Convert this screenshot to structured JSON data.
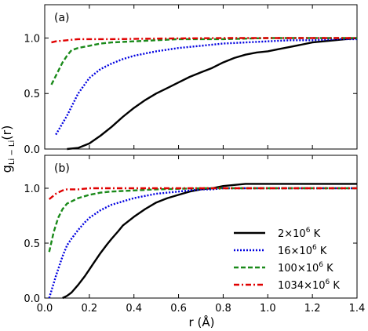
{
  "chart_data": [
    {
      "type": "line",
      "panel_label": "(a)",
      "xlabel": "",
      "ylabel": "",
      "xlim": [
        0.0,
        1.4
      ],
      "ylim": [
        0.0,
        1.3
      ],
      "y_ticks": [
        "0.0",
        "0.5",
        "1.0"
      ],
      "grid": false,
      "series": [
        {
          "name": "2×10⁶ K",
          "color": "#000000",
          "style": "solid",
          "x": [
            0.1,
            0.15,
            0.2,
            0.25,
            0.3,
            0.35,
            0.4,
            0.45,
            0.5,
            0.55,
            0.6,
            0.65,
            0.7,
            0.75,
            0.8,
            0.85,
            0.9,
            0.95,
            1.0,
            1.05,
            1.1,
            1.15,
            1.2,
            1.25,
            1.3,
            1.35,
            1.4
          ],
          "y": [
            0.0,
            0.01,
            0.05,
            0.12,
            0.2,
            0.29,
            0.37,
            0.44,
            0.5,
            0.55,
            0.6,
            0.65,
            0.69,
            0.73,
            0.78,
            0.82,
            0.85,
            0.87,
            0.88,
            0.9,
            0.92,
            0.94,
            0.96,
            0.97,
            0.98,
            0.99,
            1.0
          ]
        },
        {
          "name": "16×10⁶ K",
          "color": "#0000e0",
          "style": "dotted",
          "x": [
            0.05,
            0.1,
            0.15,
            0.2,
            0.25,
            0.3,
            0.35,
            0.4,
            0.5,
            0.6,
            0.7,
            0.8,
            0.9,
            1.0,
            1.1,
            1.2,
            1.3,
            1.4
          ],
          "y": [
            0.13,
            0.3,
            0.5,
            0.64,
            0.72,
            0.77,
            0.81,
            0.84,
            0.88,
            0.91,
            0.93,
            0.95,
            0.96,
            0.97,
            0.98,
            0.98,
            0.99,
            0.99
          ]
        },
        {
          "name": "100×10⁶ K",
          "color": "#1a8a1a",
          "style": "dashed",
          "x": [
            0.03,
            0.05,
            0.08,
            0.1,
            0.12,
            0.15,
            0.2,
            0.25,
            0.3,
            0.4,
            0.5,
            0.6,
            0.8,
            1.0,
            1.2,
            1.4
          ],
          "y": [
            0.58,
            0.66,
            0.78,
            0.84,
            0.89,
            0.91,
            0.93,
            0.95,
            0.96,
            0.97,
            0.98,
            0.99,
            0.99,
            1.0,
            1.0,
            1.0
          ]
        },
        {
          "name": "1034×10⁶ K",
          "color": "#e00000",
          "style": "dashdot",
          "x": [
            0.03,
            0.05,
            0.1,
            0.15,
            0.2,
            0.3,
            0.5,
            0.8,
            1.1,
            1.4
          ],
          "y": [
            0.96,
            0.97,
            0.98,
            0.99,
            0.99,
            0.99,
            0.995,
            1.0,
            1.0,
            1.0
          ]
        }
      ]
    },
    {
      "type": "line",
      "panel_label": "(b)",
      "xlabel": "r (Å)",
      "ylabel": "",
      "xlim": [
        0.0,
        1.4
      ],
      "ylim": [
        0.0,
        1.3
      ],
      "x_ticks": [
        "0.0",
        "0.2",
        "0.4",
        "0.6",
        "0.8",
        "1.0",
        "1.2",
        "1.4"
      ],
      "y_ticks": [
        "0.0",
        "0.5",
        "1.0"
      ],
      "grid": false,
      "legend_position": "lower-right",
      "series": [
        {
          "name": "2×10⁶ K",
          "color": "#000000",
          "style": "solid",
          "x": [
            0.08,
            0.1,
            0.12,
            0.15,
            0.18,
            0.2,
            0.22,
            0.25,
            0.28,
            0.3,
            0.33,
            0.35,
            0.4,
            0.45,
            0.5,
            0.55,
            0.6,
            0.65,
            0.7,
            0.75,
            0.8,
            0.85,
            0.9,
            0.95,
            1.0,
            1.1,
            1.2,
            1.3,
            1.4
          ],
          "y": [
            0.0,
            0.02,
            0.05,
            0.12,
            0.2,
            0.26,
            0.32,
            0.41,
            0.49,
            0.54,
            0.61,
            0.66,
            0.74,
            0.81,
            0.87,
            0.91,
            0.94,
            0.97,
            0.99,
            1.0,
            1.02,
            1.03,
            1.04,
            1.04,
            1.04,
            1.04,
            1.04,
            1.04,
            1.04
          ]
        },
        {
          "name": "16×10⁶ K",
          "color": "#0000e0",
          "style": "dotted",
          "x": [
            0.02,
            0.05,
            0.08,
            0.1,
            0.12,
            0.15,
            0.18,
            0.2,
            0.25,
            0.3,
            0.35,
            0.4,
            0.45,
            0.5,
            0.55,
            0.6,
            0.65,
            0.7,
            0.75,
            0.8,
            0.9,
            1.0,
            1.2,
            1.4
          ],
          "y": [
            0.0,
            0.2,
            0.38,
            0.48,
            0.54,
            0.62,
            0.69,
            0.73,
            0.8,
            0.85,
            0.88,
            0.91,
            0.93,
            0.95,
            0.96,
            0.97,
            0.98,
            0.99,
            0.99,
            1.0,
            1.0,
            1.0,
            1.0,
            1.0
          ]
        },
        {
          "name": "100×10⁶ K",
          "color": "#1a8a1a",
          "style": "dashed",
          "x": [
            0.02,
            0.04,
            0.06,
            0.08,
            0.1,
            0.15,
            0.2,
            0.25,
            0.3,
            0.4,
            0.5,
            0.7,
            1.0,
            1.4
          ],
          "y": [
            0.42,
            0.6,
            0.73,
            0.81,
            0.86,
            0.91,
            0.94,
            0.96,
            0.97,
            0.98,
            0.99,
            1.0,
            1.0,
            1.0
          ]
        },
        {
          "name": "1034×10⁶ K",
          "color": "#e00000",
          "style": "dashdot",
          "x": [
            0.02,
            0.05,
            0.08,
            0.1,
            0.15,
            0.2,
            0.3,
            0.5,
            0.8,
            1.1,
            1.4
          ],
          "y": [
            0.9,
            0.95,
            0.98,
            0.99,
            0.99,
            1.0,
            1.0,
            1.0,
            1.0,
            1.0,
            1.0
          ]
        }
      ]
    }
  ],
  "shared_ylabel_main": "g",
  "shared_ylabel_sub": "Li − Li",
  "shared_ylabel_tail": "(r)",
  "legend": [
    {
      "label": "2×10",
      "sup": "6",
      "tail": " K"
    },
    {
      "label": "16×10",
      "sup": "6",
      "tail": " K"
    },
    {
      "label": "100×10",
      "sup": "6",
      "tail": " K"
    },
    {
      "label": "1034×10",
      "sup": "6",
      "tail": " K"
    }
  ]
}
